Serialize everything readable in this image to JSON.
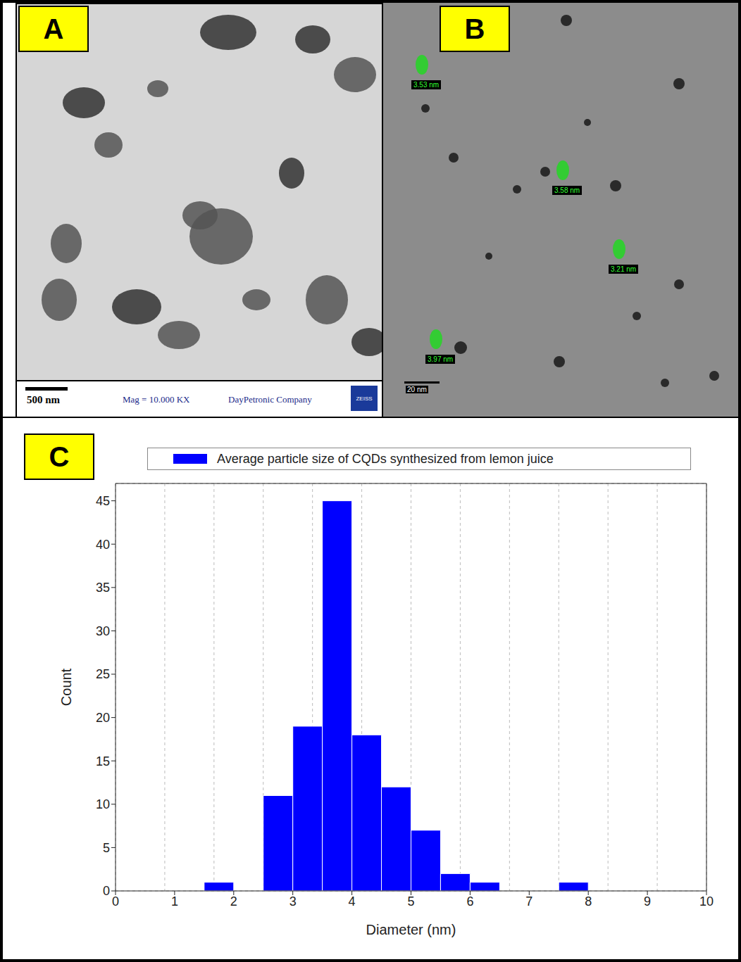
{
  "panel_labels": [
    "A",
    "B",
    "C"
  ],
  "micrograph_a": {
    "scale_bar": "500 nm",
    "magnification": "Mag = 10.000 KX",
    "company": "DayPetronic Company",
    "brand": "ZEISS"
  },
  "micrograph_b": {
    "particle_labels": [
      "3.53 nm",
      "3.58 nm",
      "3.21 nm",
      "3.97 nm"
    ],
    "scale_bar": "20 nm"
  },
  "chart_data": {
    "type": "histogram",
    "series_name": "Average particle size of CQDs synthesized from lemon juice",
    "x_label": "Diameter (nm)",
    "y_label": "Count",
    "bins": [
      1.5,
      2,
      2.5,
      3,
      3.5,
      4,
      4.5,
      5,
      5.5,
      6,
      6.5,
      7,
      7.5,
      8
    ],
    "counts": [
      1,
      0,
      11,
      19,
      45,
      18,
      12,
      7,
      2,
      1,
      0,
      0,
      1
    ],
    "color": "#0000ff",
    "xlim": [
      0,
      10
    ],
    "xticks": [
      0,
      1,
      2,
      3,
      4,
      5,
      6,
      7,
      8,
      9,
      10
    ],
    "ylim": [
      0,
      47
    ],
    "yticks": [
      0,
      5,
      10,
      15,
      20,
      25,
      30,
      35,
      40,
      45
    ],
    "grid": true,
    "legend": "top"
  }
}
